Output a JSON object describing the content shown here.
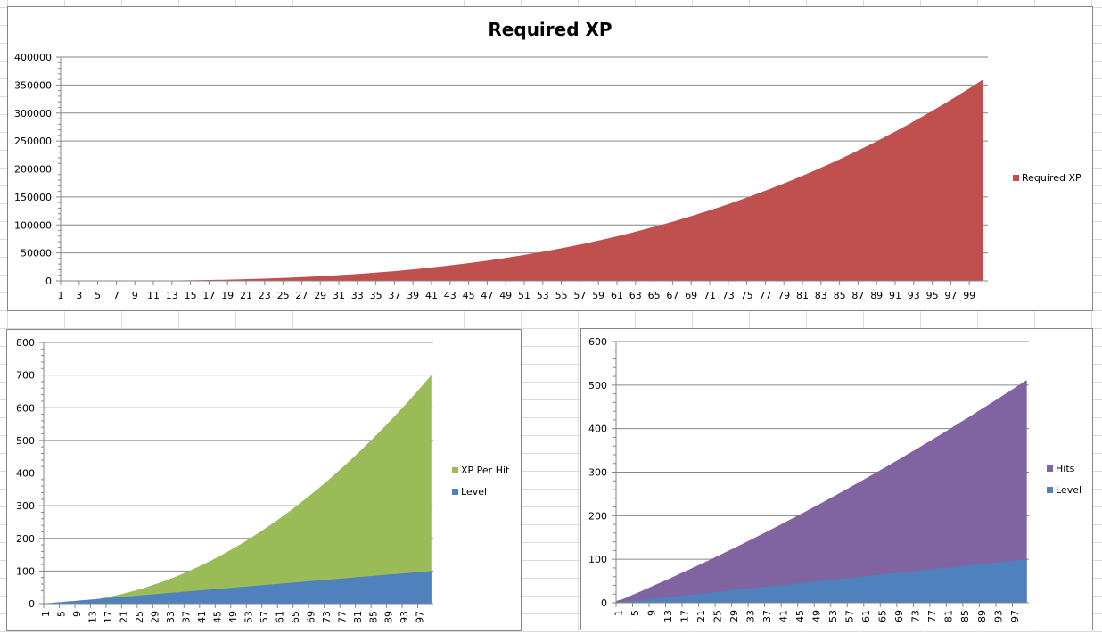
{
  "chart_data": [
    {
      "type": "area",
      "title": "Required XP",
      "xlabel": "",
      "ylabel": "",
      "ylim": [
        0,
        400000
      ],
      "yticks": [
        0,
        50000,
        100000,
        150000,
        200000,
        250000,
        300000,
        350000,
        400000
      ],
      "x_tick_labels_every": 2,
      "x_range": [
        1,
        100
      ],
      "grid": true,
      "legend_position": "right",
      "series": [
        {
          "name": "Required XP",
          "color": "#c0504d",
          "formula_approx": "0.36*L^3",
          "sample_points": {
            "1": 0,
            "11": 480,
            "21": 3330,
            "31": 10720,
            "41": 24810,
            "51": 47750,
            "61": 81710,
            "71": 128850,
            "81": 191310,
            "91": 271270,
            "100": 360000
          }
        }
      ]
    },
    {
      "type": "area",
      "title": "",
      "ylim": [
        0,
        800
      ],
      "yticks": [
        0,
        100,
        200,
        300,
        400,
        500,
        600,
        700,
        800
      ],
      "x_tick_labels_every": 4,
      "x_range": [
        1,
        100
      ],
      "grid": true,
      "legend_position": "right",
      "series": [
        {
          "name": "XP Per Hit",
          "color": "#9bbb59",
          "sample_points": {
            "1": 7,
            "25": 80,
            "50": 210,
            "75": 420,
            "100": 700
          }
        },
        {
          "name": "Level",
          "color": "#4f81bd",
          "sample_points": {
            "1": 1,
            "25": 25,
            "50": 50,
            "75": 75,
            "100": 100
          }
        }
      ]
    },
    {
      "type": "area",
      "title": "",
      "ylim": [
        0,
        600
      ],
      "yticks": [
        0,
        100,
        200,
        300,
        400,
        500,
        600
      ],
      "x_tick_labels_every": 4,
      "x_range": [
        1,
        100
      ],
      "grid": true,
      "legend_position": "right",
      "series": [
        {
          "name": "Hits",
          "color": "#8064a2",
          "sample_points": {
            "1": 0,
            "25": 110,
            "50": 240,
            "75": 380,
            "100": 512
          }
        },
        {
          "name": "Level",
          "color": "#4f81bd",
          "sample_points": {
            "1": 1,
            "25": 25,
            "50": 50,
            "75": 75,
            "100": 100
          }
        }
      ]
    }
  ],
  "charts": {
    "top": {
      "title": "Required XP",
      "legend": [
        "Required XP"
      ]
    },
    "bottom_left": {
      "legend": [
        "XP Per Hit",
        "Level"
      ]
    },
    "bottom_right": {
      "legend": [
        "Hits",
        "Level"
      ]
    }
  }
}
